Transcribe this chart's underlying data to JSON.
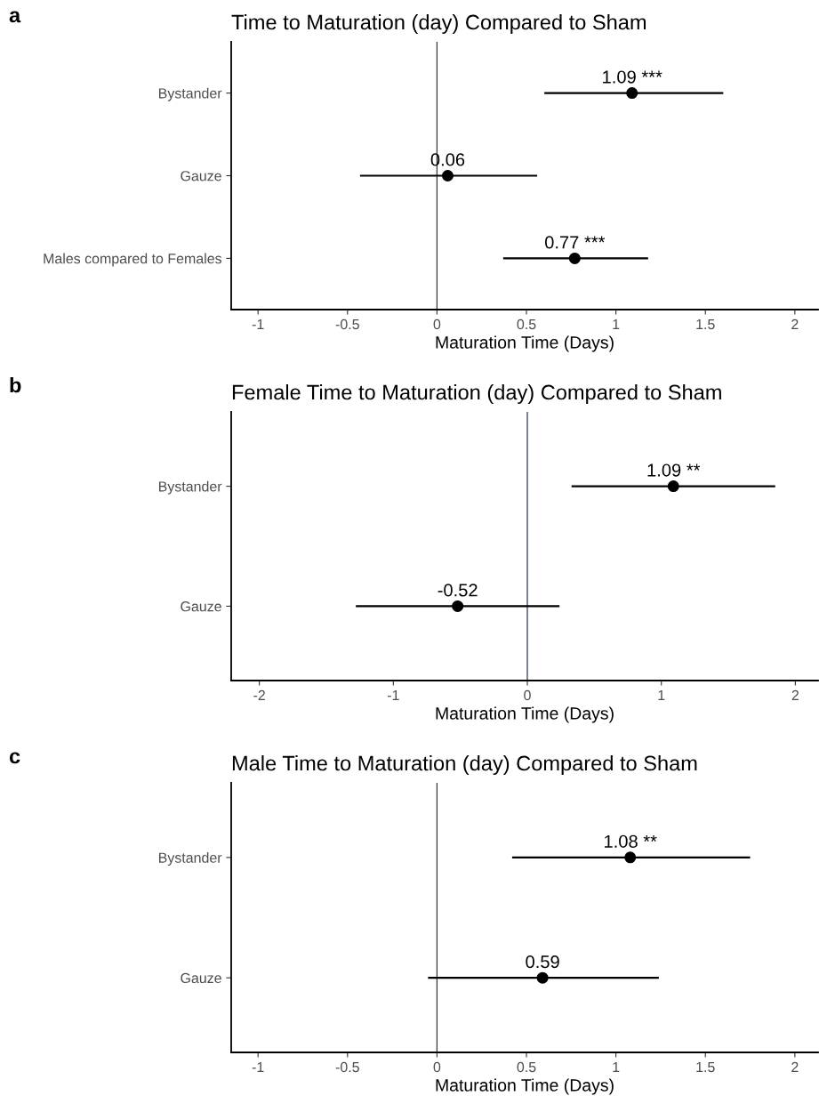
{
  "chart_data": [
    {
      "type": "scatter",
      "title": "Time to Maturation (day) Compared to Sham",
      "xlabel": "Maturation Time (Days)",
      "orientation": "horizontal",
      "categories": [
        "Bystander",
        "Gauze",
        "Males compared to Females"
      ],
      "values": [
        1.09,
        0.06,
        0.77
      ],
      "errors": [
        [
          0.6,
          1.6
        ],
        [
          -0.43,
          0.56
        ],
        [
          0.37,
          1.18
        ]
      ],
      "value_labels": [
        "1.09 ***",
        "0.06",
        "0.77 ***"
      ],
      "color": "#000000",
      "marker": "circle",
      "xlim": [
        -1.15,
        2.13
      ],
      "xticks": [
        -1,
        -0.5,
        0,
        0.5,
        1,
        1.5,
        2
      ],
      "ref_lines": [
        {
          "axis": "x",
          "value": 0,
          "color": "#2b3a4a"
        }
      ],
      "grid": false,
      "annotations": [
        "a"
      ]
    },
    {
      "type": "scatter",
      "title": "Female Time to Maturation (day) Compared to Sham",
      "xlabel": "Maturation Time (Days)",
      "orientation": "horizontal",
      "categories": [
        "Bystander",
        "Gauze"
      ],
      "values": [
        1.09,
        -0.52
      ],
      "errors": [
        [
          0.33,
          1.85
        ],
        [
          -1.28,
          0.24
        ]
      ],
      "value_labels": [
        "1.09 **",
        "-0.52"
      ],
      "color": "#000000",
      "marker": "circle",
      "xlim": [
        -2.21,
        2.17
      ],
      "xticks": [
        -2,
        -1,
        0,
        1,
        2
      ],
      "ref_lines": [
        {
          "axis": "x",
          "value": 0,
          "color": "#2b3a4a"
        }
      ],
      "grid": false,
      "annotations": [
        "b"
      ]
    },
    {
      "type": "scatter",
      "title": "Male Time to Maturation (day) Compared to Sham",
      "xlabel": "Maturation Time (Days)",
      "orientation": "horizontal",
      "categories": [
        "Bystander",
        "Gauze"
      ],
      "values": [
        1.08,
        0.59
      ],
      "errors": [
        [
          0.42,
          1.75
        ],
        [
          -0.05,
          1.24
        ]
      ],
      "value_labels": [
        "1.08 **",
        "0.59"
      ],
      "color": "#000000",
      "marker": "circle",
      "xlim": [
        -1.15,
        2.13
      ],
      "xticks": [
        -1,
        -0.5,
        0,
        0.5,
        1,
        1.5,
        2
      ],
      "ref_lines": [
        {
          "axis": "x",
          "value": 0,
          "color": "#2b3a4a"
        }
      ],
      "grid": false,
      "annotations": [
        "c"
      ]
    }
  ]
}
